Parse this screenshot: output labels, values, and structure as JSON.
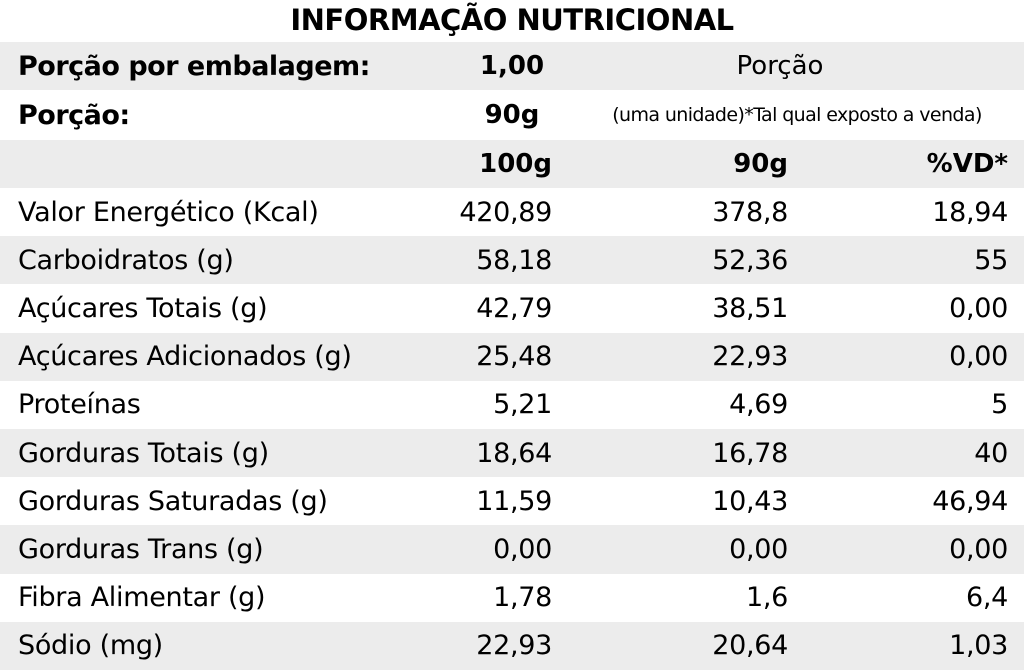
{
  "title": "INFORMAÇÃO NUTRICIONAL",
  "portions_per_pack": {
    "label": "Porção por embalagem:",
    "value": "1,00",
    "portion_heading": "Porção"
  },
  "portion": {
    "label": "Porção:",
    "value": "90g",
    "note": "(uma unidade)*Tal qual exposto a venda)"
  },
  "columns": {
    "per100": "100g",
    "per_portion": "90g",
    "vd": "%VD*"
  },
  "rows": [
    {
      "name": "Valor Energético (Kcal)",
      "per100": "420,89",
      "per_portion": "378,8",
      "vd": "18,94"
    },
    {
      "name": "Carboidratos (g)",
      "per100": "58,18",
      "per_portion": "52,36",
      "vd": "55"
    },
    {
      "name": "Açúcares Totais (g)",
      "per100": "42,79",
      "per_portion": "38,51",
      "vd": "0,00"
    },
    {
      "name": "Açúcares Adicionados (g)",
      "per100": "25,48",
      "per_portion": "22,93",
      "vd": "0,00"
    },
    {
      "name": "Proteínas",
      "per100": "5,21",
      "per_portion": "4,69",
      "vd": "5"
    },
    {
      "name": "Gorduras Totais (g)",
      "per100": "18,64",
      "per_portion": "16,78",
      "vd": "40"
    },
    {
      "name": "Gorduras Saturadas (g)",
      "per100": "11,59",
      "per_portion": "10,43",
      "vd": "46,94"
    },
    {
      "name": "Gorduras Trans (g)",
      "per100": "0,00",
      "per_portion": "0,00",
      "vd": "0,00"
    },
    {
      "name": "Fibra Alimentar (g)",
      "per100": "1,78",
      "per_portion": "1,6",
      "vd": "6,4"
    },
    {
      "name": "Sódio (mg)",
      "per100": "22,93",
      "per_portion": "20,64",
      "vd": "1,03"
    }
  ]
}
